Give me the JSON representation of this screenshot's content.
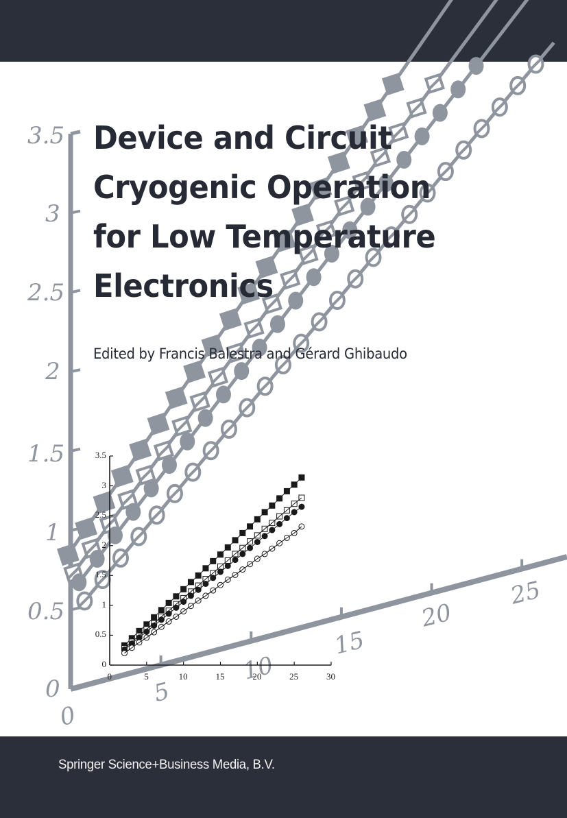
{
  "cover": {
    "title_lines": [
      "Device and Circuit",
      "Cryogenic Operation",
      "for Low Temperature",
      "Electronics"
    ],
    "editors": "Edited by Francis Balestra and Gérard Ghibaudo",
    "publisher": "Springer Science+Business Media, B.V.",
    "colors": {
      "band": "#2b2f3a",
      "title_text": "#262a35",
      "gray_chart": "#8f959e",
      "background": "#ffffff"
    }
  },
  "background_chart": {
    "y_ticks": [
      "3.5",
      "3",
      "2.5",
      "2",
      "1.5",
      "1",
      "0.5",
      "0"
    ],
    "x_ticks": [
      "0",
      "5",
      "10",
      "15",
      "20",
      "25"
    ]
  },
  "chart_data": {
    "type": "line",
    "title": "",
    "xlabel": "",
    "ylabel": "",
    "xlim": [
      0,
      30
    ],
    "ylim": [
      0,
      3.5
    ],
    "x_ticks": [
      "0",
      "5",
      "10",
      "15",
      "20",
      "25",
      "30"
    ],
    "y_ticks": [
      "0",
      "0.5",
      "1",
      "1.5",
      "2",
      "2.5",
      "3",
      "3.5"
    ],
    "grid": false,
    "legend": "none",
    "x": [
      2,
      3,
      4,
      5,
      6,
      7,
      8,
      9,
      10,
      11,
      12,
      13,
      14,
      15,
      16,
      17,
      18,
      19,
      20,
      21,
      22,
      23,
      24,
      25,
      26
    ],
    "series": [
      {
        "name": "filled squares",
        "marker": "square-filled",
        "values": [
          0.33,
          0.45,
          0.57,
          0.68,
          0.8,
          0.92,
          1.04,
          1.15,
          1.27,
          1.39,
          1.5,
          1.62,
          1.74,
          1.85,
          1.97,
          2.09,
          2.21,
          2.32,
          2.44,
          2.56,
          2.67,
          2.79,
          2.91,
          3.02,
          3.14
        ]
      },
      {
        "name": "open squares",
        "marker": "square-open",
        "values": [
          0.28,
          0.39,
          0.49,
          0.6,
          0.7,
          0.81,
          0.91,
          1.02,
          1.12,
          1.23,
          1.33,
          1.44,
          1.54,
          1.65,
          1.75,
          1.86,
          1.96,
          2.07,
          2.17,
          2.28,
          2.38,
          2.49,
          2.59,
          2.7,
          2.8
        ]
      },
      {
        "name": "filled circles",
        "marker": "circle-filled",
        "values": [
          0.26,
          0.36,
          0.46,
          0.56,
          0.66,
          0.76,
          0.86,
          0.96,
          1.06,
          1.16,
          1.26,
          1.36,
          1.46,
          1.56,
          1.66,
          1.76,
          1.86,
          1.96,
          2.06,
          2.16,
          2.26,
          2.36,
          2.46,
          2.56,
          2.65
        ]
      },
      {
        "name": "open circles",
        "marker": "circle-open",
        "values": [
          0.2,
          0.29,
          0.38,
          0.46,
          0.55,
          0.64,
          0.73,
          0.81,
          0.9,
          0.99,
          1.08,
          1.16,
          1.25,
          1.34,
          1.43,
          1.51,
          1.6,
          1.69,
          1.78,
          1.86,
          1.95,
          2.04,
          2.13,
          2.21,
          2.32
        ]
      }
    ]
  }
}
